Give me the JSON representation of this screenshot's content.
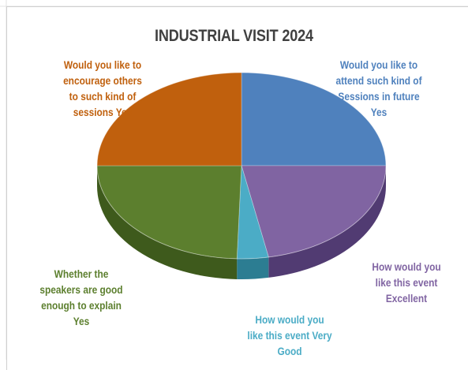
{
  "chart_data": {
    "type": "pie",
    "title": "INDUSTRIAL VISIT 2024",
    "slices": [
      {
        "label_lines": [
          "Would you like to",
          "attend such kind of",
          "Sessions in future",
          "Yes"
        ],
        "value": 25,
        "color": "#4F81BD",
        "side": "#2F5685"
      },
      {
        "label_lines": [
          "How would you",
          "like this event",
          "Excellent"
        ],
        "value": 22,
        "color": "#8064A2",
        "side": "#513B72"
      },
      {
        "label_lines": [
          "How would you",
          "like this event Very",
          "Good"
        ],
        "value": 3.5,
        "color": "#4BACC6",
        "side": "#2C7D92"
      },
      {
        "label_lines": [
          "Whether the",
          "speakers are good",
          "enough to explain",
          "Yes"
        ],
        "value": 24.5,
        "color": "#5C7F2E",
        "side": "#3E5A1C"
      },
      {
        "label_lines": [
          "Would you like to",
          "encourage others",
          "to such kind of",
          "sessions Yes"
        ],
        "value": 25,
        "color": "#C0600D",
        "side": "#8A4205"
      }
    ],
    "legend": "none"
  }
}
